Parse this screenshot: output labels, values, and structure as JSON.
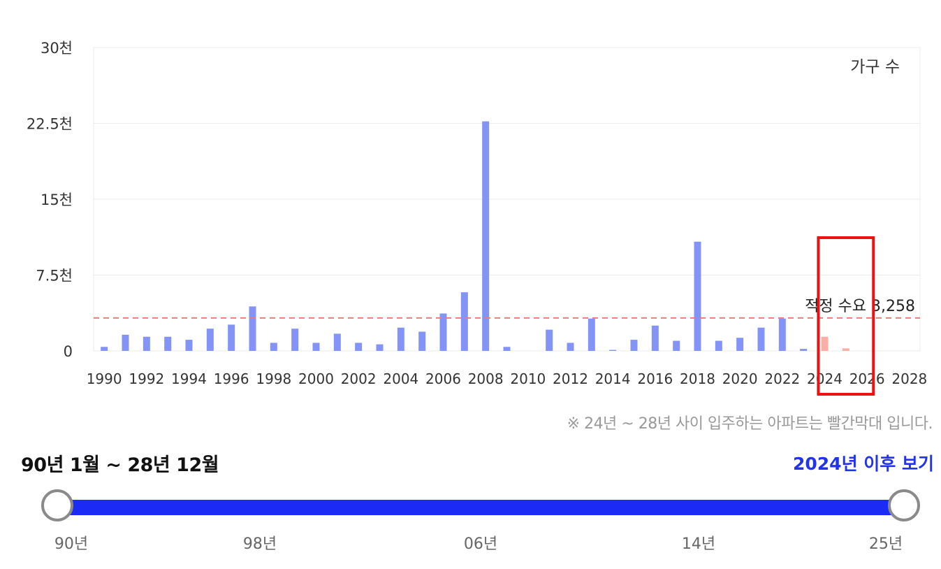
{
  "chart_data": {
    "type": "bar",
    "x": [
      1990,
      1991,
      1992,
      1993,
      1994,
      1995,
      1996,
      1997,
      1998,
      1999,
      2000,
      2001,
      2002,
      2003,
      2004,
      2005,
      2006,
      2007,
      2008,
      2009,
      2010,
      2011,
      2012,
      2013,
      2014,
      2015,
      2016,
      2017,
      2018,
      2019,
      2020,
      2021,
      2022,
      2023,
      2024,
      2025,
      2026,
      2027,
      2028
    ],
    "values": [
      400,
      1600,
      1400,
      1400,
      1100,
      2200,
      2600,
      4400,
      800,
      2200,
      800,
      1700,
      800,
      650,
      2300,
      1900,
      3700,
      5800,
      22700,
      400,
      0,
      2100,
      800,
      3200,
      100,
      1100,
      2500,
      1000,
      10800,
      1000,
      1300,
      2300,
      3200,
      200,
      1400,
      250,
      0,
      0,
      0
    ],
    "highlight_range": [
      2024,
      2028
    ],
    "colors": {
      "bar": "#8494f6",
      "highlight_bar": "#f9aea6",
      "reference_line": "#ef7a7a",
      "box": "#ee1111"
    },
    "x_tick_labels": [
      "1990",
      "1992",
      "1994",
      "1996",
      "1998",
      "2000",
      "2002",
      "2004",
      "2006",
      "2008",
      "2010",
      "2012",
      "2014",
      "2016",
      "2018",
      "2020",
      "2022",
      "2024",
      "2026",
      "2028"
    ],
    "y_ticks": [
      {
        "value": 0,
        "label": "0"
      },
      {
        "value": 7500,
        "label": "7.5천"
      },
      {
        "value": 15000,
        "label": "15천"
      },
      {
        "value": 22500,
        "label": "22.5천"
      },
      {
        "value": 30000,
        "label": "30천"
      }
    ],
    "ylim": [
      0,
      30000
    ],
    "xlim": [
      1989.5,
      2028.5
    ],
    "grid": true,
    "series_label": "가구 수",
    "reference_line": {
      "value": 3258,
      "label": "적정 수요 3,258"
    },
    "highlight_box_years": [
      2023.7,
      2026.3
    ]
  },
  "note": "※ 24년 ~ 28년 사이 입주하는 아파트는 빨간막대 입니다.",
  "range_label": "90년 1월 ~ 28년 12월",
  "after_2024_link": "2024년 이후 보기",
  "slider": {
    "start_fraction": 0,
    "end_fraction": 1,
    "tick_labels": [
      "90년",
      "98년",
      "06년",
      "14년",
      "25년"
    ]
  }
}
